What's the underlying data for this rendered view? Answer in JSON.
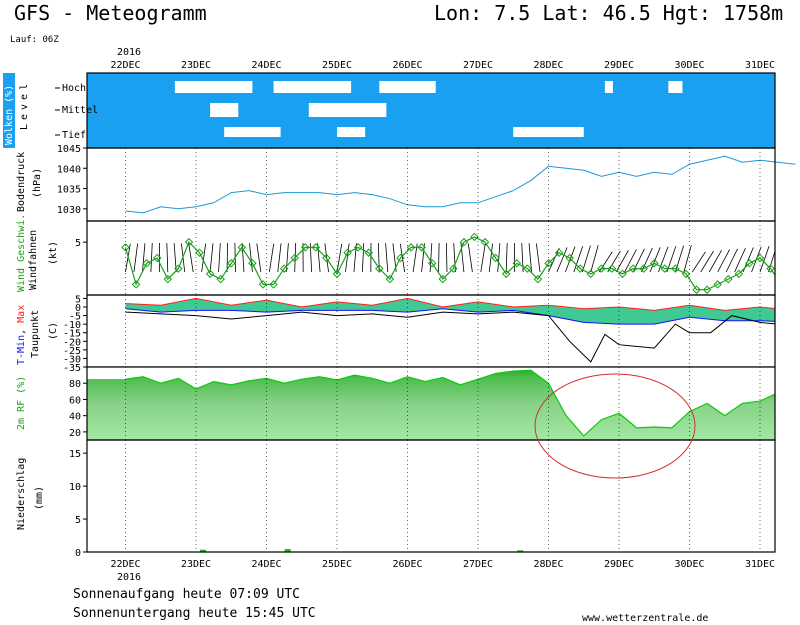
{
  "header": {
    "title": "GFS - Meteogramm",
    "location": "Lon: 7.5  Lat: 46.5  Hgt: 1758m",
    "run": "Lauf: 06Z",
    "year_top": "2016",
    "year_bottom": "2016"
  },
  "dates": [
    "22DEC",
    "23DEC",
    "24DEC",
    "25DEC",
    "26DEC",
    "27DEC",
    "28DEC",
    "29DEC",
    "30DEC",
    "31DEC"
  ],
  "footer": {
    "sunrise": "Sonnenaufgang heute 07:09 UTC",
    "sunset": "Sonnenuntergang heute 15:45 UTC",
    "site": "www.wetterzentrale.de"
  },
  "colors": {
    "cloud_bg": "#1aa0f0",
    "pressure": "#1a9ad8",
    "wind": "#1aa01a",
    "tmax": "#ff2020",
    "tmin": "#1010ff",
    "temp_fill": "#20c080",
    "rh_fill": "#10c810",
    "annotation": "#d03030"
  },
  "chart_data": [
    {
      "type": "heatmap",
      "title": "Wolken (%)",
      "ylabel": "Level",
      "levels": [
        "Hoch",
        "Mittel",
        "Tief"
      ],
      "x": [
        "22DEC",
        "23DEC",
        "24DEC",
        "25DEC",
        "26DEC",
        "27DEC",
        "28DEC",
        "29DEC",
        "30DEC",
        "31DEC"
      ],
      "clear_patches": [
        {
          "level": "Hoch",
          "x": [
            0.7,
            1.8
          ]
        },
        {
          "level": "Hoch",
          "x": [
            2.1,
            3.2
          ]
        },
        {
          "level": "Hoch",
          "x": [
            3.6,
            4.4
          ]
        },
        {
          "level": "Hoch",
          "x": [
            6.8,
            6.9
          ]
        },
        {
          "level": "Hoch",
          "x": [
            7.7,
            7.9
          ]
        },
        {
          "level": "Mittel",
          "x": [
            1.2,
            1.6
          ]
        },
        {
          "level": "Mittel",
          "x": [
            2.6,
            3.3
          ]
        },
        {
          "level": "Mittel",
          "x": [
            3.1,
            3.7
          ]
        },
        {
          "level": "Tief",
          "x": [
            1.4,
            2.2
          ]
        },
        {
          "level": "Tief",
          "x": [
            3.0,
            3.4
          ]
        },
        {
          "level": "Tief",
          "x": [
            5.5,
            6.5
          ]
        }
      ]
    },
    {
      "type": "line",
      "title": "Bodendruck",
      "ylabel": "(hPa)",
      "ylim": [
        1027,
        1045
      ],
      "yticks": [
        1030,
        1035,
        1040,
        1045
      ],
      "x": [
        0,
        0.25,
        0.5,
        0.75,
        1,
        1.25,
        1.5,
        1.75,
        2,
        2.25,
        2.5,
        2.75,
        3,
        3.25,
        3.5,
        3.75,
        4,
        4.25,
        4.5,
        4.75,
        5,
        5.25,
        5.5,
        5.75,
        6,
        6.25,
        6.5,
        6.75,
        7,
        7.25,
        7.5,
        7.75,
        8,
        8.25,
        8.5,
        8.75,
        9,
        9.25,
        9.5
      ],
      "values": [
        1029.5,
        1029.0,
        1030.5,
        1030.0,
        1030.5,
        1031.5,
        1034.0,
        1034.5,
        1033.5,
        1034.0,
        1034.0,
        1034.0,
        1033.5,
        1034.0,
        1033.5,
        1032.5,
        1031.0,
        1030.5,
        1030.5,
        1031.5,
        1031.5,
        1033.0,
        1034.5,
        1037.0,
        1040.5,
        1040.0,
        1039.5,
        1038.0,
        1039.0,
        1038.0,
        1039.0,
        1038.5,
        1041.0,
        1042.0,
        1043.0,
        1041.5,
        1042.0,
        1041.5,
        1041.0
      ]
    },
    {
      "type": "line",
      "title": "Wind Geschwi.",
      "ylabel": "(kt)",
      "yticks": [
        5
      ],
      "ylim": [
        0,
        7
      ],
      "series": [
        {
          "name": "Wind Geschwi.",
          "x": [
            0,
            0.15,
            0.3,
            0.45,
            0.6,
            0.75,
            0.9,
            1.05,
            1.2,
            1.35,
            1.5,
            1.65,
            1.8,
            1.95,
            2.1,
            2.25,
            2.4,
            2.55,
            2.7,
            2.85,
            3.0,
            3.15,
            3.3,
            3.45,
            3.6,
            3.75,
            3.9,
            4.05,
            4.2,
            4.35,
            4.5,
            4.65,
            4.8,
            4.95,
            5.1,
            5.25,
            5.4,
            5.55,
            5.7,
            5.85,
            6.0,
            6.15,
            6.3,
            6.45,
            6.6,
            6.75,
            6.9,
            7.05,
            7.2,
            7.35,
            7.5,
            7.65,
            7.8,
            7.95,
            8.1,
            8.25,
            8.4,
            8.55,
            8.7,
            8.85,
            9.0,
            9.15,
            9.3,
            9.45,
            9.6
          ],
          "values": [
            4.5,
            1,
            3,
            3.5,
            1.5,
            2.5,
            5,
            4,
            2,
            1.5,
            3,
            4.5,
            3,
            1,
            1,
            2.5,
            3.5,
            4.5,
            4.5,
            3.5,
            2,
            4,
            4.5,
            4,
            2.5,
            1.5,
            3.5,
            4.5,
            4.5,
            3,
            1.5,
            2.5,
            5,
            5.5,
            5,
            3.5,
            2,
            3,
            2.5,
            1.5,
            3,
            4,
            3.5,
            2.5,
            2,
            2.5,
            2.5,
            2,
            2.5,
            2.5,
            3,
            2.5,
            2.5,
            2,
            0.5,
            0.5,
            1,
            1.5,
            2,
            3,
            3.5,
            2.5,
            1,
            0.5,
            1
          ]
        },
        {
          "name": "Windfahnen",
          "note": "wind barbs"
        }
      ]
    },
    {
      "type": "area",
      "title": "T-Min, Max",
      "ylabel": "(C)",
      "ylim": [
        -35,
        7
      ],
      "yticks": [
        5,
        0,
        -5,
        -10,
        -15,
        -20,
        -25,
        -30,
        -35
      ],
      "series": [
        {
          "name": "T-Max",
          "x": [
            0,
            0.5,
            1,
            1.5,
            2,
            2.5,
            3,
            3.5,
            4,
            4.5,
            5,
            5.5,
            6,
            6.5,
            7,
            7.5,
            8,
            8.5,
            9,
            9.5
          ],
          "values": [
            2,
            1,
            5,
            1,
            4,
            0,
            3,
            1,
            5,
            0,
            3,
            0,
            1,
            -1,
            0,
            -2,
            1,
            -2,
            0,
            -2
          ]
        },
        {
          "name": "T-Min",
          "x": [
            0,
            0.5,
            1,
            1.5,
            2,
            2.5,
            3,
            3.5,
            4,
            4.5,
            5,
            5.5,
            6,
            6.5,
            7,
            7.5,
            8,
            8.5,
            9,
            9.5
          ],
          "values": [
            -1,
            -3,
            -2,
            -2,
            -3,
            -2,
            -2,
            -2,
            -3,
            -1,
            -3,
            -2,
            -5,
            -9,
            -10,
            -10,
            -6,
            -8,
            -8,
            -9
          ]
        },
        {
          "name": "Taupunkt",
          "x": [
            0,
            0.5,
            1,
            1.5,
            2,
            2.5,
            3,
            3.5,
            4,
            4.5,
            5,
            5.5,
            6,
            6.3,
            6.6,
            6.8,
            7,
            7.5,
            7.8,
            8,
            8.3,
            8.6,
            9,
            9.5
          ],
          "values": [
            -3,
            -4,
            -5,
            -7,
            -5,
            -3,
            -5,
            -4,
            -6,
            -3,
            -4,
            -3,
            -5,
            -20,
            -32,
            -16,
            -22,
            -24,
            -10,
            -15,
            -15,
            -5,
            -9,
            -11
          ]
        }
      ]
    },
    {
      "type": "area",
      "title": "2m RF (%)",
      "ylim": [
        10,
        100
      ],
      "yticks": [
        20,
        40,
        60,
        80
      ],
      "x": [
        0,
        0.25,
        0.5,
        0.75,
        1,
        1.25,
        1.5,
        1.75,
        2,
        2.25,
        2.5,
        2.75,
        3,
        3.25,
        3.5,
        3.75,
        4,
        4.25,
        4.5,
        4.75,
        5,
        5.25,
        5.5,
        5.75,
        6,
        6.25,
        6.5,
        6.75,
        7,
        7.25,
        7.5,
        7.75,
        8,
        8.25,
        8.5,
        8.75,
        9,
        9.25,
        9.5
      ],
      "values": [
        85,
        88,
        80,
        86,
        73,
        82,
        78,
        83,
        86,
        80,
        85,
        88,
        84,
        90,
        86,
        80,
        88,
        82,
        87,
        78,
        85,
        92,
        95,
        96,
        80,
        40,
        15,
        35,
        43,
        25,
        26,
        25,
        45,
        55,
        40,
        55,
        58,
        68,
        70
      ]
    },
    {
      "type": "bar",
      "title": "Niederschlag",
      "ylabel": "(mm)",
      "ylim": [
        0,
        17
      ],
      "yticks": [
        0,
        5,
        10,
        15
      ],
      "x": [
        1.1,
        2.3,
        5.6
      ],
      "values": [
        0.2,
        0.3,
        0.1
      ]
    }
  ]
}
